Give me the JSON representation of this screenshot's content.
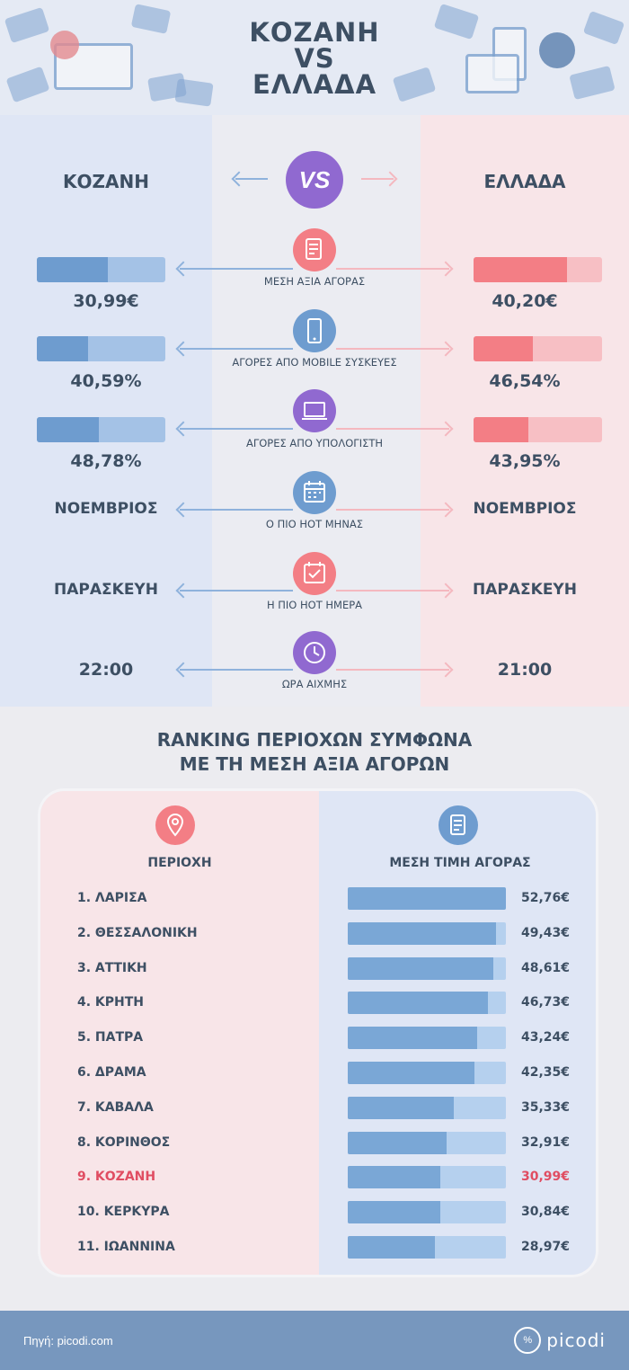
{
  "header": {
    "title_line1": "ΚΟΖΑΝΗ",
    "title_line2": "VS",
    "title_line3": "ΕΛΛΑΔΑ"
  },
  "compare": {
    "left_title": "ΚΟΖΑΝΗ",
    "right_title": "ΕΛΛΑΔΑ",
    "vs_label": "VS",
    "rows": [
      {
        "label": "ΜΕΣΗ ΑΞΙΑ ΑΓΟΡΑΣ",
        "left": "30,99€",
        "right": "40,20€",
        "left_fill": 0.55,
        "right_fill": 0.73,
        "icon": "receipt-icon"
      },
      {
        "label": "ΑΓΟΡΕΣ ΑΠΟ MOBILE ΣΥΣΚΕΥΕΣ",
        "left": "40,59%",
        "right": "46,54%",
        "left_fill": 0.4,
        "right_fill": 0.46,
        "icon": "mobile-icon"
      },
      {
        "label": "ΑΓΟΡΕΣ ΑΠΟ ΥΠΟΛΟΓΙΣΤΗ",
        "left": "48,78%",
        "right": "43,95%",
        "left_fill": 0.48,
        "right_fill": 0.43,
        "icon": "laptop-icon"
      },
      {
        "label": "Ο ΠΙΟ HOT ΜΗΝΑΣ",
        "left": "ΝΟΕΜΒΡΙΟΣ",
        "right": "ΝΟΕΜΒΡΙΟΣ",
        "icon": "calendar-icon"
      },
      {
        "label": "Η ΠΙΟ HOT ΗΜΕΡΑ",
        "left": "ΠΑΡΑΣΚΕΥΗ",
        "right": "ΠΑΡΑΣΚΕΥΗ",
        "icon": "calendar-check-icon"
      },
      {
        "label": "ΩΡΑ ΑΙΧΜΗΣ",
        "left": "22:00",
        "right": "21:00",
        "icon": "clock-icon"
      }
    ]
  },
  "ranking": {
    "title_line1": "RANKING ΠΕΡΙΟΧΩΝ ΣΥΜΦΩΝΑ",
    "title_line2": "ΜΕ ΤΗ ΜΕΣΗ ΑΞΙΑ ΑΓΟΡΩΝ",
    "col_region": "ΠΕΡΙΟΧΗ",
    "col_price": "ΜΕΣΗ ΤΙΜΗ ΑΓΟΡΑΣ",
    "max_value": 52.76,
    "items": [
      {
        "name": "1. ΛΑΡΙΣΑ",
        "value_label": "52,76€",
        "value": 52.76
      },
      {
        "name": "2. ΘΕΣΣΑΛΟΝΙΚΗ",
        "value_label": "49,43€",
        "value": 49.43
      },
      {
        "name": "3. ΑΤΤΙΚΗ",
        "value_label": "48,61€",
        "value": 48.61
      },
      {
        "name": "4. ΚΡΗΤΗ",
        "value_label": "46,73€",
        "value": 46.73
      },
      {
        "name": "5. ΠΑΤΡΑ",
        "value_label": "43,24€",
        "value": 43.24
      },
      {
        "name": "6. ΔΡΑΜΑ",
        "value_label": "42,35€",
        "value": 42.35
      },
      {
        "name": "7. ΚΑΒΑΛΑ",
        "value_label": "35,33€",
        "value": 35.33
      },
      {
        "name": "8. ΚΟΡΙΝΘΟΣ",
        "value_label": "32,91€",
        "value": 32.91
      },
      {
        "name": "9. ΚΟΖΑΝΗ",
        "value_label": "30,99€",
        "value": 30.99,
        "highlight": true
      },
      {
        "name": "10. ΚΕΡΚΥΡΑ",
        "value_label": "30,84€",
        "value": 30.84
      },
      {
        "name": "11. ΙΩΑΝΝΙΝΑ",
        "value_label": "28,97€",
        "value": 28.97
      }
    ]
  },
  "footer": {
    "source": "Πηγή: picodi.com",
    "logo_text": "picodi",
    "logo_mark": "%"
  },
  "colors": {
    "blue": "#6e9ccf",
    "red": "#f37e85",
    "purple": "#9069d0",
    "text": "#3d4f63",
    "highlight": "#e04d62"
  }
}
